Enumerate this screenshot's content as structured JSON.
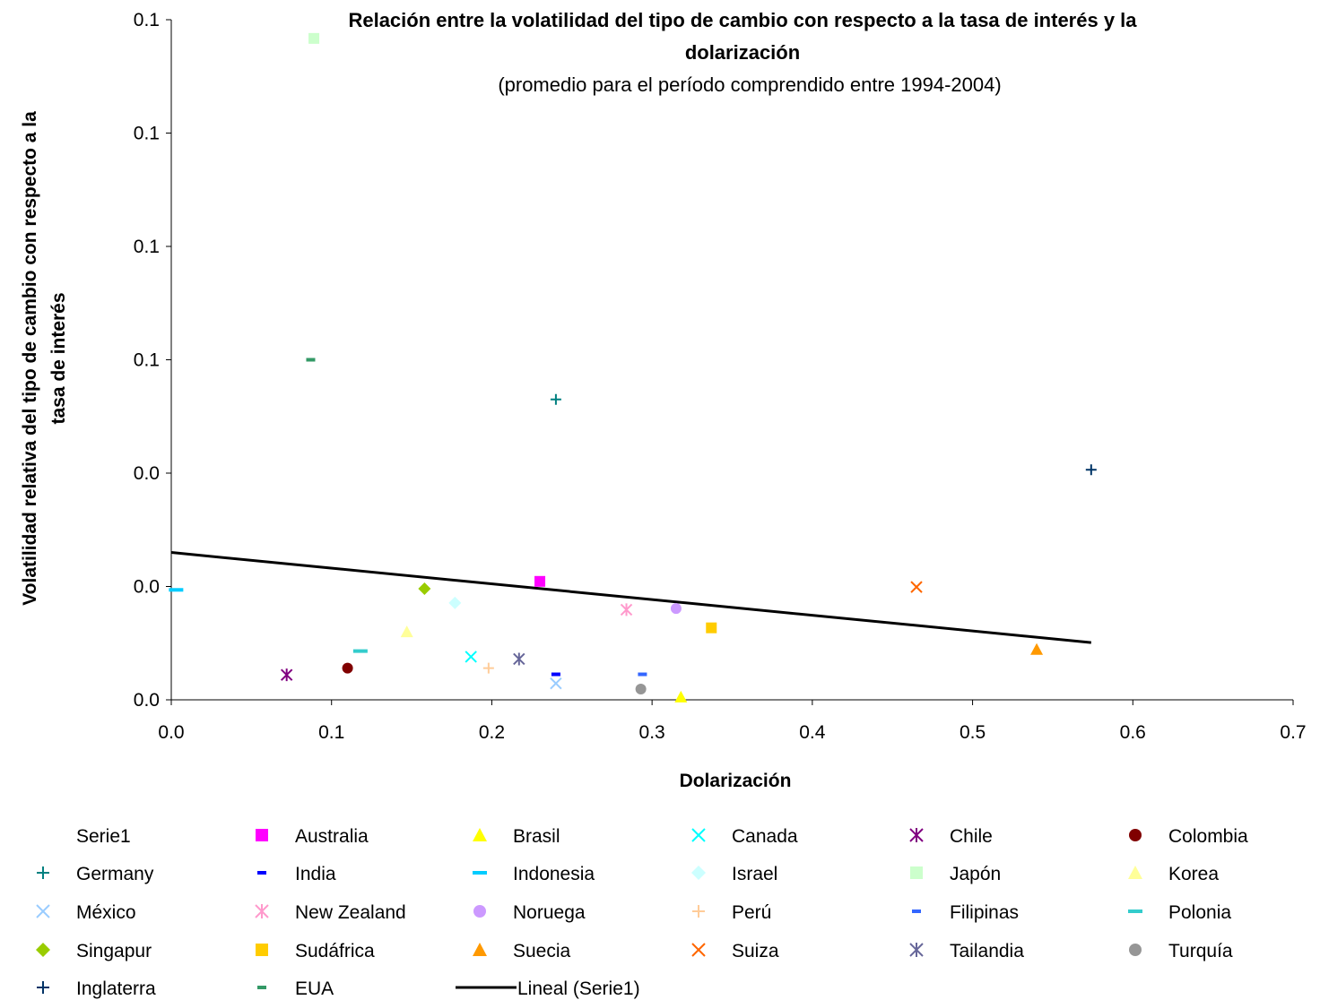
{
  "chart_data": {
    "type": "scatter",
    "title_line1": "Relación entre la volatilidad del tipo de cambio con respecto a la tasa de interés y la",
    "title_line2": "dolarización",
    "subtitle": "(promedio para el período comprendido entre 1994-2004)",
    "xlabel": "Dolarización",
    "ylabel_line1": "Volatilidad relativa del tipo de cambio con respecto a la",
    "ylabel_line2": "tasa de interés",
    "xlim": [
      0,
      0.7
    ],
    "ylim": [
      0,
      0.12
    ],
    "x_ticks": [
      {
        "value": 0.0,
        "label": "0.0"
      },
      {
        "value": 0.1,
        "label": "0.1"
      },
      {
        "value": 0.2,
        "label": "0.2"
      },
      {
        "value": 0.3,
        "label": "0.3"
      },
      {
        "value": 0.4,
        "label": "0.4"
      },
      {
        "value": 0.5,
        "label": "0.5"
      },
      {
        "value": 0.6,
        "label": "0.6"
      },
      {
        "value": 0.7,
        "label": "0.7"
      }
    ],
    "y_ticks": [
      {
        "value": 0.0,
        "label": "0.0"
      },
      {
        "value": 0.02,
        "label": "0.0"
      },
      {
        "value": 0.04,
        "label": "0.0"
      },
      {
        "value": 0.06,
        "label": "0.1"
      },
      {
        "value": 0.08,
        "label": "0.1"
      },
      {
        "value": 0.1,
        "label": "0.1"
      },
      {
        "value": 0.12,
        "label": "0.1"
      }
    ],
    "grid": false,
    "legend_position": "bottom",
    "series": [
      {
        "name": "Serie1",
        "marker": "none",
        "color": "#000000",
        "points": []
      },
      {
        "name": "Australia",
        "marker": "square",
        "color": "#ff00ff",
        "points": [
          [
            0.23,
            0.0209
          ]
        ]
      },
      {
        "name": "Brasil",
        "marker": "triangle",
        "color": "#ffff00",
        "points": [
          [
            0.318,
            0.0005
          ]
        ]
      },
      {
        "name": "Canada",
        "marker": "x",
        "color": "#00ffff",
        "points": [
          [
            0.187,
            0.0076
          ]
        ]
      },
      {
        "name": "Chile",
        "marker": "star",
        "color": "#800080",
        "points": [
          [
            0.072,
            0.0044
          ]
        ]
      },
      {
        "name": "Colombia",
        "marker": "circle",
        "color": "#800000",
        "points": [
          [
            0.11,
            0.0056
          ]
        ]
      },
      {
        "name": "Germany",
        "marker": "plus",
        "color": "#008080",
        "points": [
          [
            0.24,
            0.053
          ]
        ]
      },
      {
        "name": "India",
        "marker": "dash",
        "color": "#0000ff",
        "points": [
          [
            0.24,
            0.0045
          ]
        ]
      },
      {
        "name": "Indonesia",
        "marker": "dash-wide",
        "color": "#00ccff",
        "points": [
          [
            0.003,
            0.0194
          ]
        ]
      },
      {
        "name": "Israel",
        "marker": "diamond",
        "color": "#ccffff",
        "points": [
          [
            0.177,
            0.0171
          ]
        ]
      },
      {
        "name": "Japón",
        "marker": "square",
        "color": "#ccffcc",
        "points": [
          [
            0.089,
            0.1167
          ]
        ]
      },
      {
        "name": "Korea",
        "marker": "triangle",
        "color": "#ffff99",
        "points": [
          [
            0.147,
            0.012
          ]
        ]
      },
      {
        "name": "México",
        "marker": "x",
        "color": "#99ccff",
        "points": [
          [
            0.24,
            0.0029
          ]
        ]
      },
      {
        "name": "New Zealand",
        "marker": "star",
        "color": "#ff99cc",
        "points": [
          [
            0.284,
            0.0159
          ]
        ]
      },
      {
        "name": "Noruega",
        "marker": "circle",
        "color": "#cc99ff",
        "points": [
          [
            0.315,
            0.0161
          ]
        ]
      },
      {
        "name": "Perú",
        "marker": "plus",
        "color": "#ffcc99",
        "points": [
          [
            0.198,
            0.0056
          ]
        ]
      },
      {
        "name": "Filipinas",
        "marker": "dash",
        "color": "#3366ff",
        "points": [
          [
            0.294,
            0.0045
          ]
        ]
      },
      {
        "name": "Polonia",
        "marker": "dash-wide",
        "color": "#33cccc",
        "points": [
          [
            0.118,
            0.0086
          ]
        ]
      },
      {
        "name": "Singapur",
        "marker": "diamond",
        "color": "#99cc00",
        "points": [
          [
            0.158,
            0.0196
          ]
        ]
      },
      {
        "name": "Sudáfrica",
        "marker": "square",
        "color": "#ffcc00",
        "points": [
          [
            0.337,
            0.0127
          ]
        ]
      },
      {
        "name": "Suecia",
        "marker": "triangle",
        "color": "#ff9900",
        "points": [
          [
            0.54,
            0.0089
          ]
        ]
      },
      {
        "name": "Suiza",
        "marker": "x",
        "color": "#ff6600",
        "points": [
          [
            0.465,
            0.0199
          ]
        ]
      },
      {
        "name": "Tailandia",
        "marker": "star",
        "color": "#666699",
        "points": [
          [
            0.217,
            0.0072
          ]
        ]
      },
      {
        "name": "Turquía",
        "marker": "circle",
        "color": "#969696",
        "points": [
          [
            0.293,
            0.0019
          ]
        ]
      },
      {
        "name": "Inglaterra",
        "marker": "plus",
        "color": "#003366",
        "points": [
          [
            0.574,
            0.0406
          ]
        ]
      },
      {
        "name": "EUA",
        "marker": "dash",
        "color": "#339966",
        "points": [
          [
            0.087,
            0.06
          ]
        ]
      },
      {
        "name": "Lineal (Serie1)",
        "marker": "line",
        "color": "#000000",
        "points": [
          [
            0.0,
            0.026
          ],
          [
            0.574,
            0.0101
          ]
        ]
      }
    ]
  }
}
